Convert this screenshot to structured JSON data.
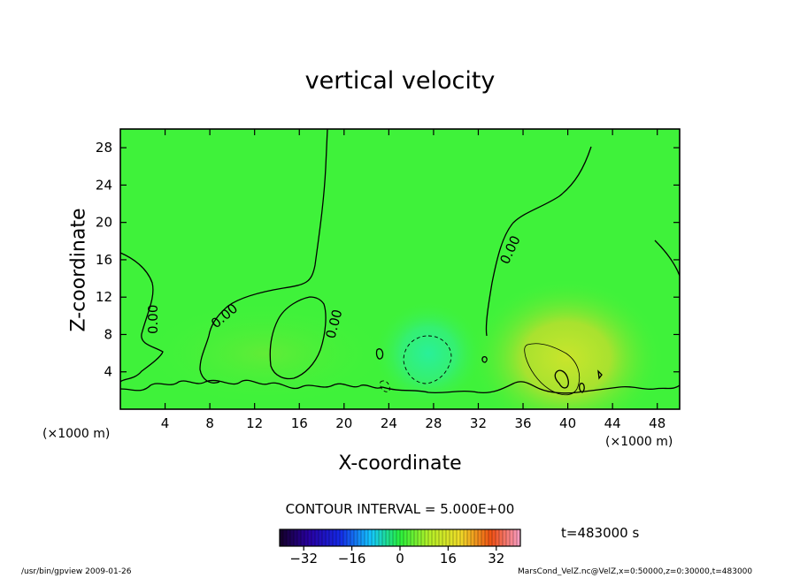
{
  "chart_data": {
    "type": "heatmap",
    "title": "vertical velocity",
    "xlabel": "X-coordinate",
    "ylabel": "Z-coordinate",
    "x_unit_left": "(×1000 m)",
    "x_unit_right": "(×1000 m)",
    "xlim": [
      0,
      50
    ],
    "ylim": [
      0,
      30
    ],
    "x_ticks": [
      4,
      8,
      12,
      16,
      20,
      24,
      28,
      32,
      36,
      40,
      44,
      48
    ],
    "y_ticks": [
      4,
      8,
      12,
      16,
      20,
      24,
      28
    ],
    "contour_label": "0.00",
    "contour_interval_text": "CONTOUR INTERVAL = 5.000E+00",
    "time_text": "t=483000 s",
    "colorbar": {
      "min": -40,
      "max": 40,
      "tick_values": [
        -32,
        -16,
        0,
        16,
        32
      ],
      "tick_labels": [
        "−32",
        "−16",
        "0",
        "16",
        "32"
      ]
    },
    "background_color": "#3ff23a",
    "features": [
      {
        "kind": "updraft_core",
        "x": 39.5,
        "z": 4.5,
        "sign": "positive"
      },
      {
        "kind": "downdraft_core",
        "x": 27.5,
        "z": 5.5,
        "sign": "negative"
      }
    ]
  },
  "footer": {
    "left": "/usr/bin/gpview   2009-01-26",
    "right": "MarsCond_VelZ.nc@VelZ,x=0:50000,z=0:30000,t=483000"
  }
}
